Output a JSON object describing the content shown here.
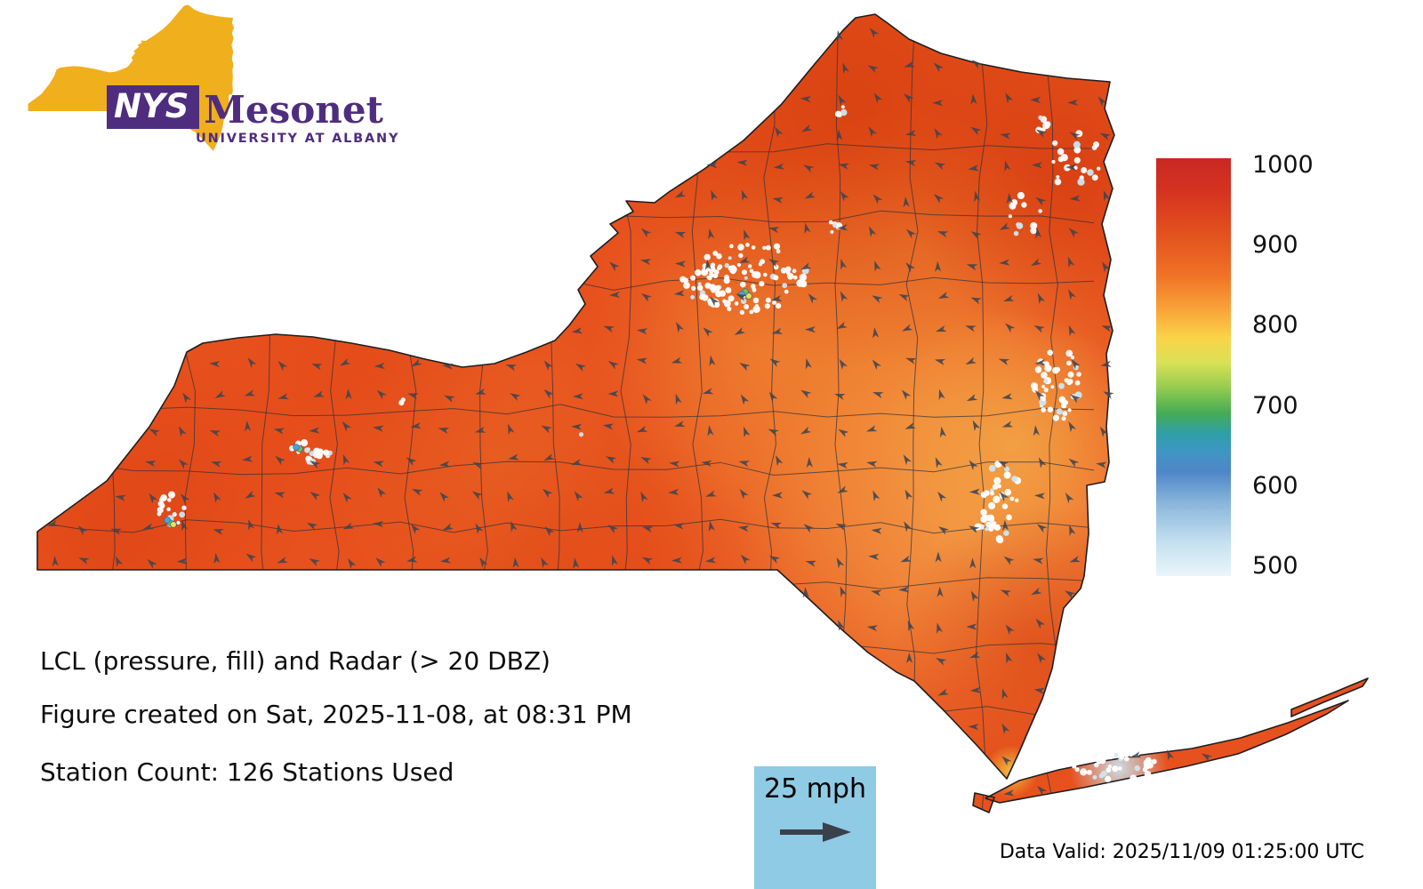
{
  "logo": {
    "acronym": "NYS",
    "name": "Mesonet",
    "affiliation": "UNIVERSITY AT ALBANY",
    "state_color": "#F0AF1D",
    "purple": "#4F2D7E"
  },
  "colorbar": {
    "ticks": [
      "1000",
      "900",
      "800",
      "700",
      "600",
      "500"
    ],
    "top_value": 1000,
    "bottom_value": 500,
    "colors_top_to_bottom": [
      "#C92823",
      "#E2511E",
      "#F07226",
      "#F9A238",
      "#FAD348",
      "#93CB4F",
      "#45AC55",
      "#3E96C2",
      "#8CB8DC",
      "#EAF6FB"
    ]
  },
  "map": {
    "base_fill": "#E7511D",
    "state_outline": "#1E1E1E",
    "county_line_color": "#2B313B",
    "wind_arrow_color": "#3E4450",
    "radar_dot_color": "#FFFFFF"
  },
  "captions": {
    "title": "LCL (pressure, fill) and Radar (> 20 DBZ)",
    "created": "Figure created on Sat, 2025-11-08, at 08:31 PM",
    "stations": "Station Count: 126 Stations Used"
  },
  "wind_legend": {
    "speed_label": "25 mph",
    "box_color": "#8FCBE4"
  },
  "footer": {
    "data_valid": "Data Valid: 2025/11/09 01:25:00 UTC"
  }
}
